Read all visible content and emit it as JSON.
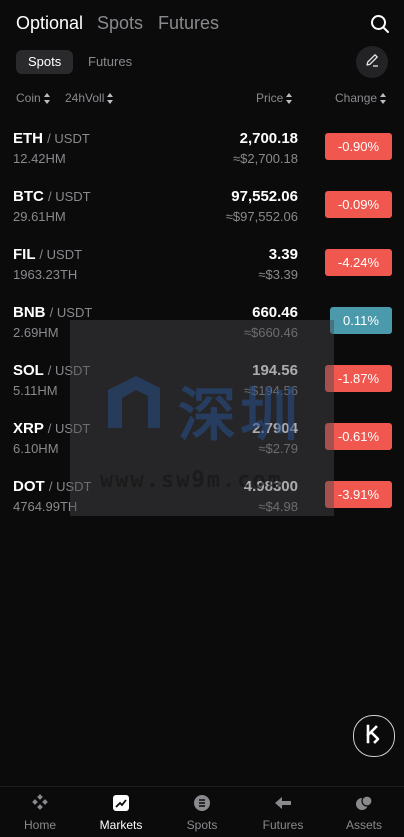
{
  "top_tabs": [
    "Optional",
    "Spots",
    "Futures"
  ],
  "sub_tabs": [
    "Spots",
    "Futures"
  ],
  "columns": {
    "coin": "Coin",
    "volume": "24hVoll",
    "price": "Price",
    "change": "Change"
  },
  "rows": [
    {
      "base": "ETH",
      "quote": "/ USDT",
      "volume": "12.42HM",
      "price": "2,700.18",
      "fiat": "≈$2,700.18",
      "change": "-0.90%",
      "direction": "down"
    },
    {
      "base": "BTC",
      "quote": "/ USDT",
      "volume": "29.61HM",
      "price": "97,552.06",
      "fiat": "≈$97,552.06",
      "change": "-0.09%",
      "direction": "down"
    },
    {
      "base": "FIL",
      "quote": "/ USDT",
      "volume": "1963.23TH",
      "price": "3.39",
      "fiat": "≈$3.39",
      "change": "-4.24%",
      "direction": "down"
    },
    {
      "base": "BNB",
      "quote": "/ USDT",
      "volume": "2.69HM",
      "price": "660.46",
      "fiat": "≈$660.46",
      "change": "0.11%",
      "direction": "up"
    },
    {
      "base": "SOL",
      "quote": "/ USDT",
      "volume": "5.11HM",
      "price": "194.56",
      "fiat": "≈$194.56",
      "change": "-1.87%",
      "direction": "down"
    },
    {
      "base": "XRP",
      "quote": "/ USDT",
      "volume": "6.10HM",
      "price": "2.7904",
      "fiat": "≈$2.79",
      "change": "-0.61%",
      "direction": "down"
    },
    {
      "base": "DOT",
      "quote": "/ USDT",
      "volume": "4764.99TH",
      "price": "4.98300",
      "fiat": "≈$4.98",
      "change": "-3.91%",
      "direction": "down"
    }
  ],
  "watermark": {
    "chinese": "深圳",
    "url": "www.sw9m.com"
  },
  "bottom_nav": [
    "Home",
    "Markets",
    "Spots",
    "Futures",
    "Assets"
  ],
  "colors": {
    "down": "#f0584f",
    "up": "#4a9aac",
    "background": "#0b0b0c"
  },
  "icons": {
    "search": "search-icon",
    "edit": "edit-pencil-icon",
    "fab": "k-logo-icon"
  }
}
